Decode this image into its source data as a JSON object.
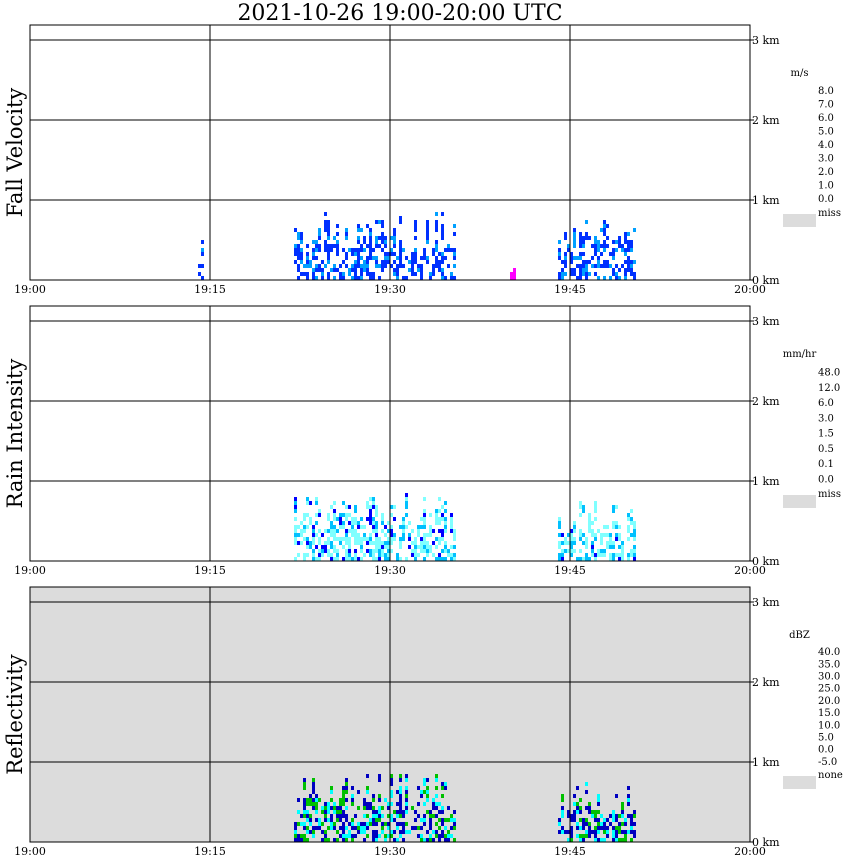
{
  "title": "2021-10-26   19:00-20:00 UTC",
  "x_ticks": [
    "19:00",
    "19:15",
    "19:30",
    "19:45",
    "20:00"
  ],
  "y_ticks": [
    "0 km",
    "1 km",
    "2 km",
    "3 km"
  ],
  "panels": [
    {
      "ylabel": "Fall Velocity",
      "unit": "m/s",
      "background": "#ffffff",
      "scale_labels": [
        "8.0",
        "7.0",
        "6.0",
        "5.0",
        "4.0",
        "3.0",
        "2.0",
        "1.0",
        "0.0"
      ],
      "scale_colors": [
        "#ff00ff",
        "#ff0000",
        "#ff6000",
        "#ffa000",
        "#c0ff00",
        "#00b000",
        "#00ffd0",
        "#00a0ff",
        "#0030ff",
        "#0000b0"
      ],
      "missing_label": "miss",
      "missing_color": "#dcdcdc"
    },
    {
      "ylabel": "Rain Intensity",
      "unit": "mm/hr",
      "background": "#ffffff",
      "scale_labels": [
        "48.0",
        "12.0",
        "6.0",
        "3.0",
        "1.5",
        "0.5",
        "0.1",
        "0.0"
      ],
      "scale_colors": [
        "#000000",
        "#400040",
        "#900090",
        "#d000d0",
        "#ff0080",
        "#ff0000",
        "#ff8000",
        "#ffff00",
        "#80ff40",
        "#00c000",
        "#0000ff",
        "#0080ff",
        "#00c0ff",
        "#80ffff",
        "#ffffff"
      ],
      "missing_label": "miss",
      "missing_color": "#dcdcdc"
    },
    {
      "ylabel": "Reflectivity",
      "unit": "dBZ",
      "background": "#dcdcdc",
      "scale_labels": [
        "40.0",
        "35.0",
        "30.0",
        "25.0",
        "20.0",
        "15.0",
        "10.0",
        "5.0",
        "0.0",
        "-5.0"
      ],
      "scale_colors": [
        "#a040c0",
        "#ff00ff",
        "#c000a0",
        "#ff0000",
        "#ff6000",
        "#ffa000",
        "#ffff00",
        "#00c000",
        "#00ffff",
        "#00b0ff",
        "#0000c0"
      ],
      "missing_label": "none",
      "missing_color": "#dcdcdc"
    }
  ],
  "chart_data": [
    {
      "type": "heatmap",
      "title": "2021-10-26   19:00-20:00 UTC",
      "ylabel": "Fall Velocity",
      "unit": "m/s",
      "x_range": [
        "19:00",
        "20:00"
      ],
      "y_range_km": [
        0,
        3.5
      ],
      "echo_regions": [
        {
          "start": "19:14",
          "end": "19:14",
          "top_km": 0.6,
          "value": "1.0"
        },
        {
          "start": "19:22",
          "end": "19:35",
          "top_km": 0.85,
          "value": "1.0-2.0"
        },
        {
          "start": "19:44",
          "end": "19:50",
          "top_km": 0.75,
          "value": "1.0"
        },
        {
          "start": "19:40",
          "end": "19:40",
          "top_km": 0.2,
          "value": "8.0"
        }
      ]
    },
    {
      "type": "heatmap",
      "title": "2021-10-26   19:00-20:00 UTC",
      "ylabel": "Rain Intensity",
      "unit": "mm/hr",
      "x_range": [
        "19:00",
        "20:00"
      ],
      "y_range_km": [
        0,
        3.5
      ],
      "echo_regions": [
        {
          "start": "19:22",
          "end": "19:35",
          "top_km": 0.85,
          "value": "0.1-0.5"
        },
        {
          "start": "19:44",
          "end": "19:50",
          "top_km": 0.75,
          "value": "0.1"
        }
      ]
    },
    {
      "type": "heatmap",
      "title": "2021-10-26   19:00-20:00 UTC",
      "ylabel": "Reflectivity",
      "unit": "dBZ",
      "x_range": [
        "19:00",
        "20:00"
      ],
      "y_range_km": [
        0,
        3.5
      ],
      "echo_regions": [
        {
          "start": "19:22",
          "end": "19:35",
          "top_km": 0.85,
          "value": "-5.0-15.0"
        },
        {
          "start": "19:44",
          "end": "19:50",
          "top_km": 0.75,
          "value": "-5.0-5.0"
        }
      ]
    }
  ]
}
